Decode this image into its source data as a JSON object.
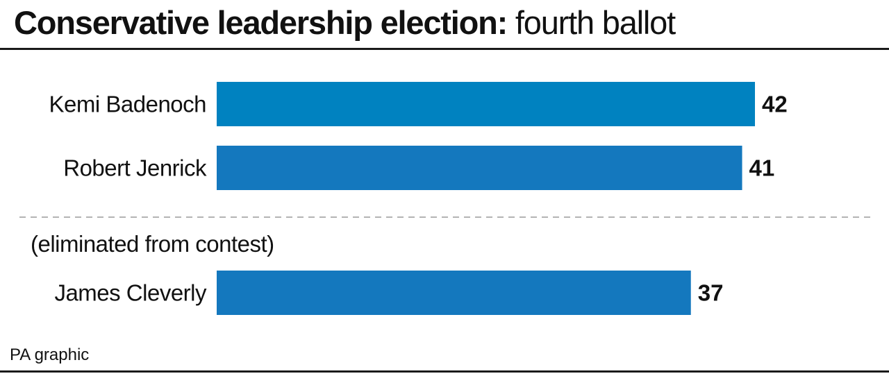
{
  "title": {
    "bold_part": "Conservative leadership election:",
    "light_part": "fourth ballot"
  },
  "note": "(eliminated from contest)",
  "source": "PA graphic",
  "chart_data": {
    "type": "bar",
    "orientation": "horizontal",
    "title": "Conservative leadership election: fourth ballot",
    "categories": [
      "Kemi Badenoch",
      "Robert Jenrick",
      "James Cleverly"
    ],
    "values": [
      42,
      41,
      37
    ],
    "data_labels": [
      "42",
      "41",
      "37"
    ],
    "colors": [
      "#0082c0",
      "#1478be",
      "#1478be"
    ],
    "separator_after_index": 1,
    "eliminated": [
      "James Cleverly"
    ],
    "xlim": [
      0,
      42
    ],
    "grid": false,
    "legend": "none"
  }
}
